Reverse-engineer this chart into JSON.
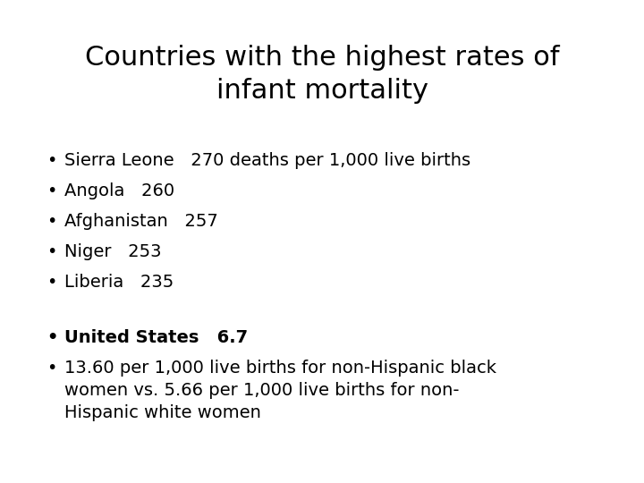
{
  "title": "Countries with the highest rates of\ninfant mortality",
  "title_fontsize": 22,
  "title_color": "#000000",
  "background_color": "#ffffff",
  "bullet_items_top": [
    "Sierra Leone   270 deaths per 1,000 live births",
    "Angola   260",
    "Afghanistan   257",
    "Niger   253",
    "Liberia   235"
  ],
  "bullet_items_bottom_bold": "United States   6.7",
  "bullet_items_bottom_normal": "13.60 per 1,000 live births for non-Hispanic black\nwomen vs. 5.66 per 1,000 live births for non-\nHispanic white women",
  "text_fontsize": 14,
  "text_color": "#000000",
  "bullet_char": "•"
}
